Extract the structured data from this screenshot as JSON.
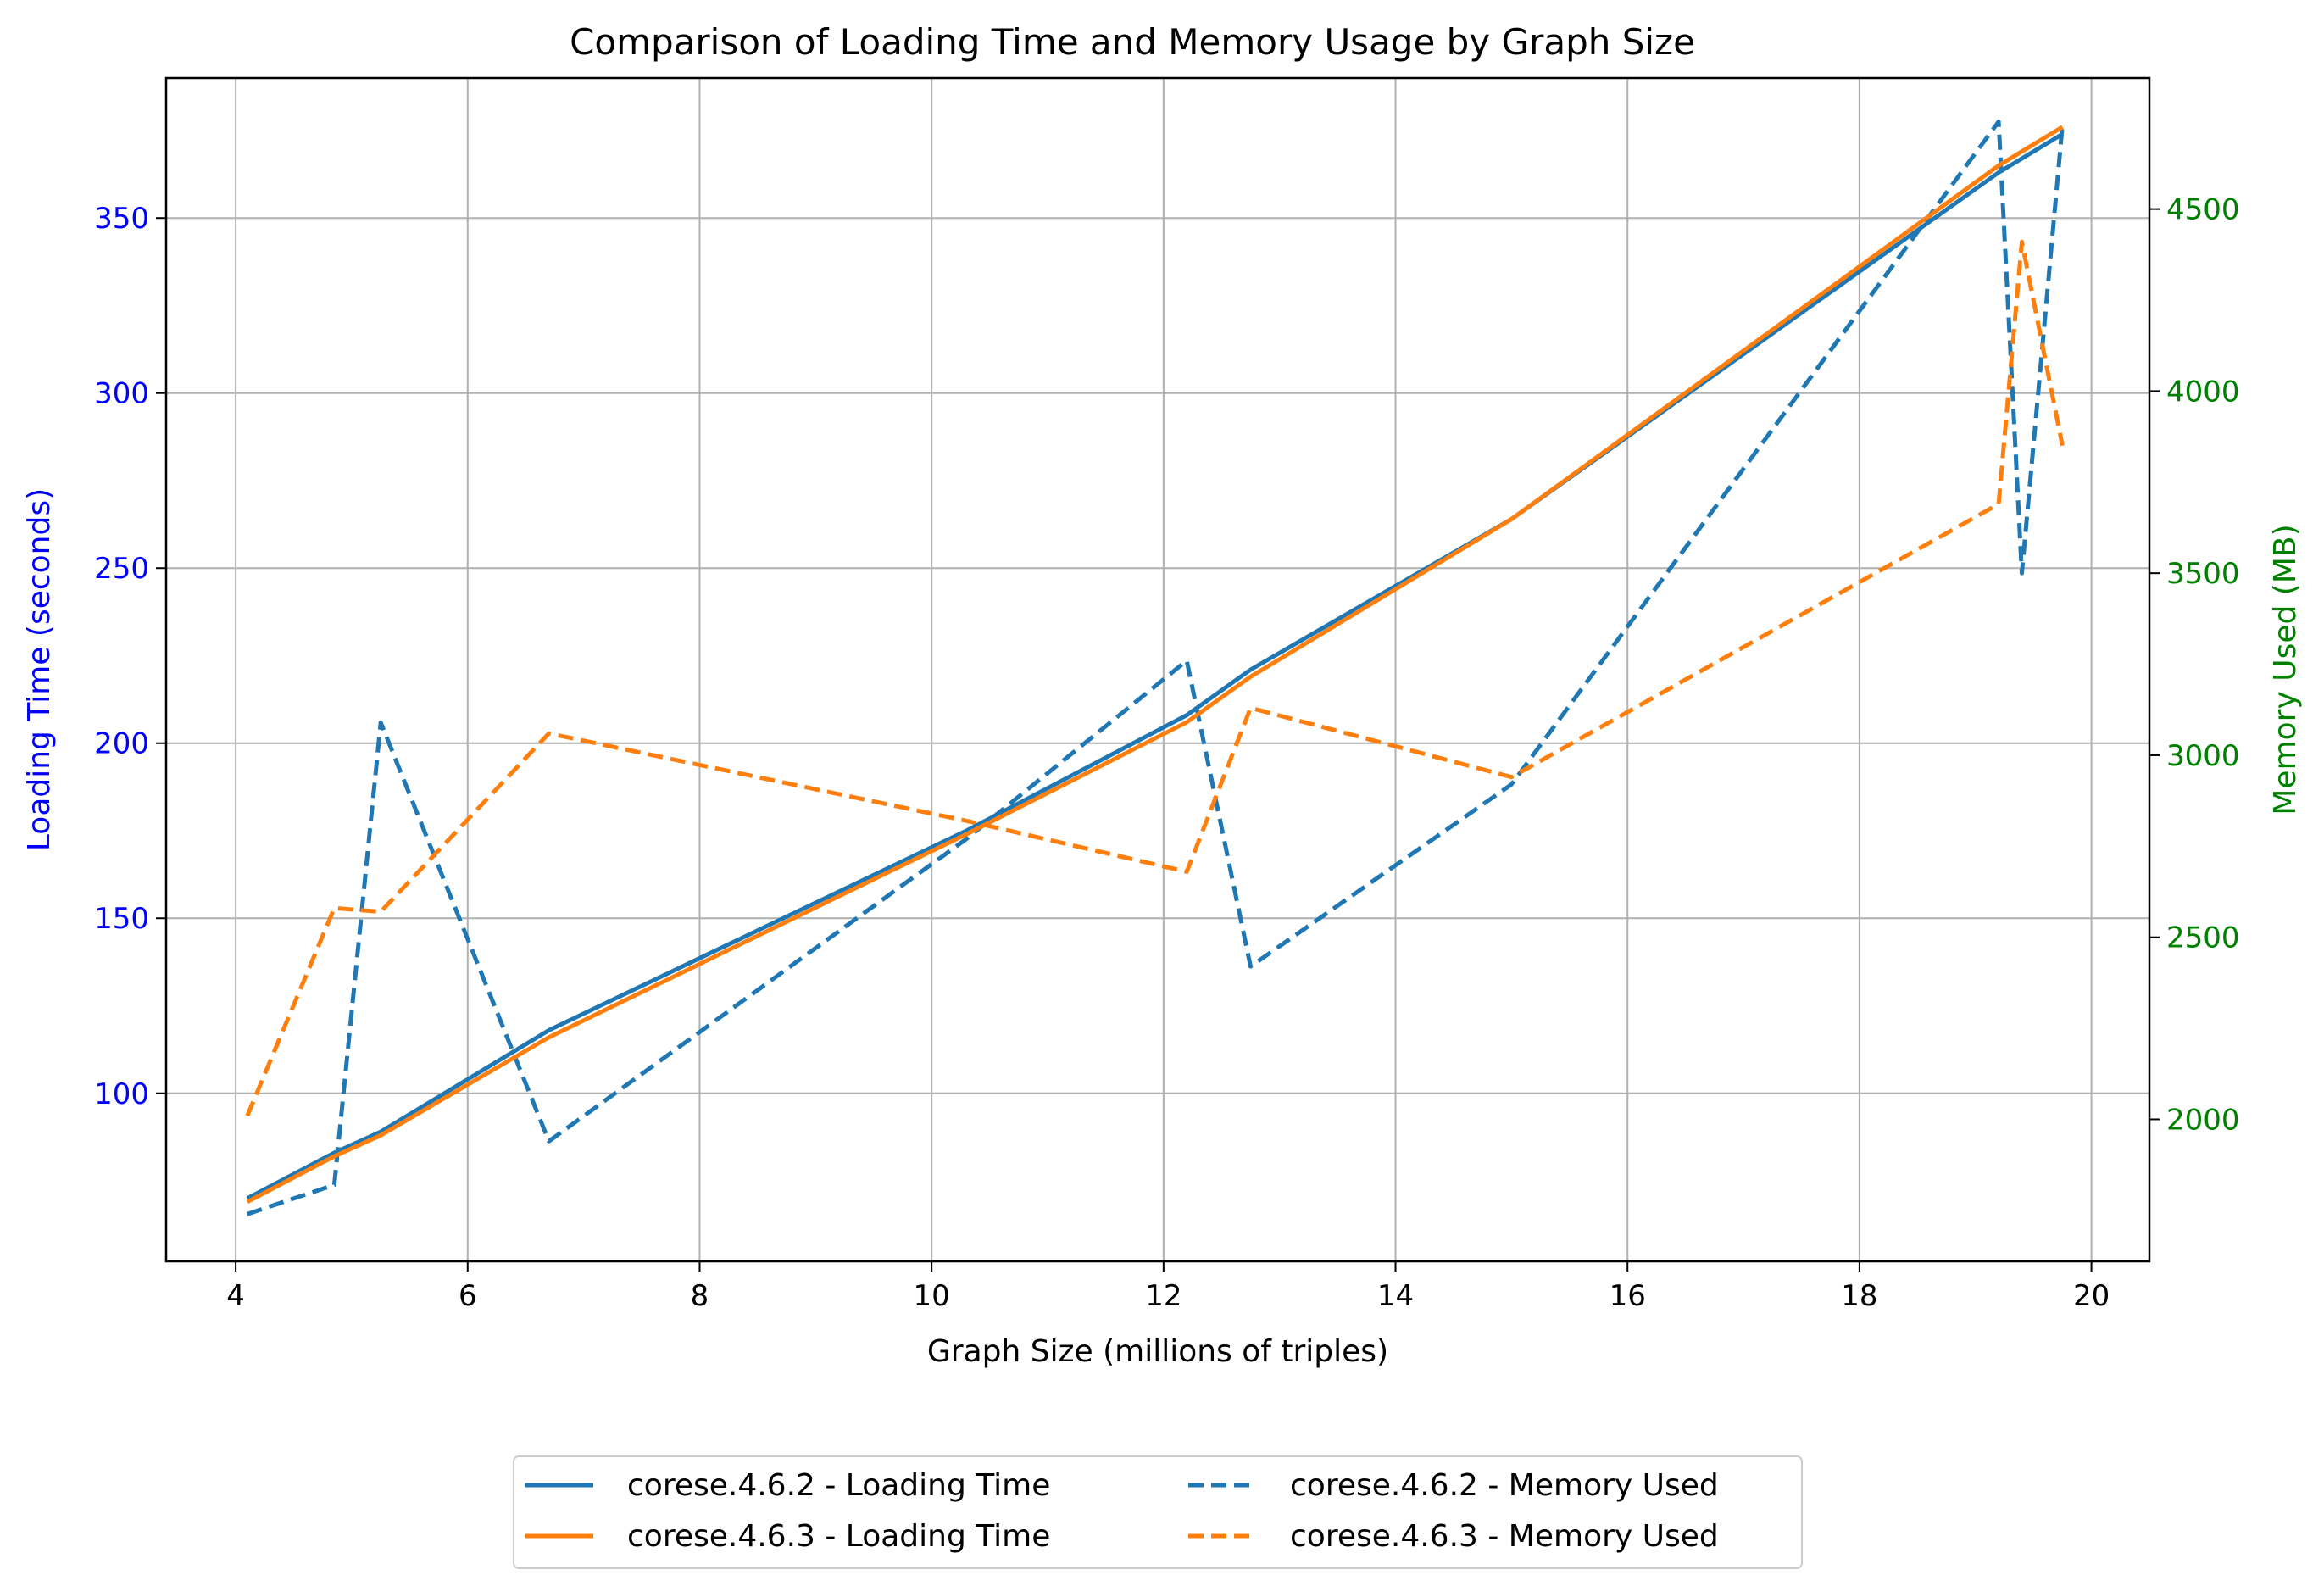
{
  "chart_data": {
    "type": "line",
    "title": "Comparison of Loading Time and Memory Usage by Graph Size",
    "xlabel": "Graph Size (millions of triples)",
    "ylabel_left": "Loading Time (seconds)",
    "ylabel_right": "Memory Used (MB)",
    "xlim": [
      3.4,
      20.5
    ],
    "ylim_left": [
      52,
      390
    ],
    "ylim_right": [
      1610,
      4860
    ],
    "x_ticks": [
      4,
      6,
      8,
      10,
      12,
      14,
      16,
      18,
      20
    ],
    "y_left_ticks": [
      100,
      150,
      200,
      250,
      300,
      350
    ],
    "y_right_ticks": [
      2000,
      2500,
      3000,
      3500,
      4000,
      4500
    ],
    "grid": true,
    "legend_position": "below",
    "colors": {
      "left_axis": "#0000ff",
      "right_axis": "#008000",
      "series_4_6_2": "#1f77b4",
      "series_4_6_3": "#ff7f0e"
    },
    "series": [
      {
        "name": "corese.4.6.2 - Loading Time",
        "axis": "left",
        "style": "solid",
        "color": "#1f77b4",
        "x": [
          4.1,
          4.85,
          5.25,
          6.7,
          10.3,
          12.2,
          12.75,
          15.0,
          19.2,
          19.4,
          19.75
        ],
        "values": [
          70,
          83,
          89,
          118,
          175,
          208,
          221,
          264,
          363,
          367,
          374
        ]
      },
      {
        "name": "corese.4.6.3 - Loading Time",
        "axis": "left",
        "style": "solid",
        "color": "#ff7f0e",
        "x": [
          4.1,
          4.85,
          5.25,
          6.7,
          10.3,
          12.2,
          12.75,
          15.0,
          19.2,
          19.4,
          19.75
        ],
        "values": [
          69,
          82,
          88,
          116,
          174,
          206,
          219,
          264,
          365,
          369,
          376
        ]
      },
      {
        "name": "corese.4.6.2 - Memory Used",
        "axis": "right",
        "style": "dashed",
        "color": "#1f77b4",
        "x": [
          4.1,
          4.85,
          5.25,
          6.7,
          10.3,
          12.2,
          12.75,
          15.0,
          19.2,
          19.4,
          19.75
        ],
        "values": [
          1740,
          1820,
          3090,
          1940,
          2770,
          3260,
          2420,
          2920,
          4740,
          3500,
          4730
        ]
      },
      {
        "name": "corese.4.6.3 - Memory Used",
        "axis": "right",
        "style": "dashed",
        "color": "#ff7f0e",
        "x": [
          4.1,
          4.85,
          5.25,
          6.7,
          10.3,
          12.2,
          12.75,
          15.0,
          19.2,
          19.4,
          19.75
        ],
        "values": [
          2010,
          2580,
          2570,
          3060,
          2820,
          2680,
          3130,
          2940,
          3690,
          4410,
          3850
        ]
      }
    ]
  }
}
